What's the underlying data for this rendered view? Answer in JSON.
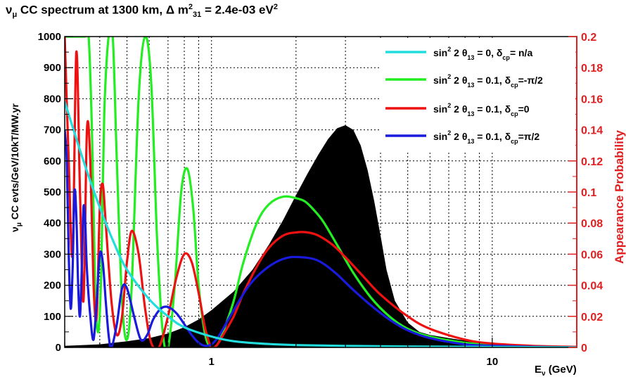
{
  "chart_data": {
    "type": "line",
    "title": {
      "nu": "ν",
      "nu_sub": "μ",
      "main": " CC spectrum at 1300 km,  Δ m",
      "dm_sup": "2",
      "dm_sub": "31",
      "value": " = 2.4e-03 eV",
      "ev_sup": "2"
    },
    "xlabel": {
      "e": "E",
      "e_sub": "ν",
      "unit": " (GeV)"
    },
    "ylabel_left": {
      "nu": "ν",
      "nu_sub": "μ",
      "rest": " CC evts/GeV/10kT/MW.yr"
    },
    "ylabel_right": "Appearance Probability",
    "x_scale": "log",
    "xlim": [
      0.3,
      20
    ],
    "x_ticks": [
      {
        "v": 1,
        "label": "1"
      },
      {
        "v": 10,
        "label": "10"
      }
    ],
    "ylim_left": [
      0,
      1000
    ],
    "y_ticks_left": [
      "0",
      "100",
      "200",
      "300",
      "400",
      "500",
      "600",
      "700",
      "800",
      "900",
      "1000"
    ],
    "ylim_right": [
      0,
      0.2
    ],
    "y_ticks_right": [
      "0",
      "0.02",
      "0.04",
      "0.06",
      "0.08",
      "0.1",
      "0.12",
      "0.14",
      "0.16",
      "0.18",
      "0.2"
    ],
    "grid": true,
    "legend_position": "top-right",
    "colors": {
      "spectrum": "#000000",
      "right_axis": "#e02020"
    },
    "spectrum": {
      "name": "",
      "x": [
        0.3,
        0.4,
        0.5,
        0.6,
        0.7,
        0.8,
        0.9,
        1.0,
        1.2,
        1.4,
        1.6,
        1.8,
        2.0,
        2.2,
        2.4,
        2.6,
        2.8,
        3.0,
        3.2,
        3.4,
        3.6,
        3.8,
        4.0,
        4.2,
        4.5,
        5.0,
        5.5,
        6.0,
        7,
        8,
        10,
        12,
        15,
        20
      ],
      "y": [
        5,
        10,
        20,
        30,
        45,
        65,
        90,
        120,
        180,
        250,
        330,
        410,
        490,
        560,
        620,
        670,
        705,
        715,
        700,
        650,
        570,
        470,
        360,
        250,
        150,
        80,
        50,
        40,
        30,
        22,
        15,
        10,
        6,
        3
      ]
    },
    "series": [
      {
        "label": {
          "a": "sin",
          "a_sup": "2",
          "b": " 2 θ",
          "b_sub": "13",
          "c": " = 0, δ",
          "c_sub": "cp",
          "d": "= n/a"
        },
        "color": "#22dddd",
        "x": [
          0.3,
          0.35,
          0.4,
          0.45,
          0.5,
          0.6,
          0.7,
          0.8,
          1.0,
          1.2,
          1.5,
          2,
          3,
          5,
          10,
          20
        ],
        "y": [
          0.158,
          0.12,
          0.09,
          0.067,
          0.05,
          0.031,
          0.02,
          0.013,
          0.007,
          0.004,
          0.0025,
          0.0015,
          0.001,
          0.0006,
          0.0003,
          0.0001
        ]
      },
      {
        "label": {
          "a": "sin",
          "a_sup": "2",
          "b": " 2 θ",
          "b_sub": "13",
          "c": " = 0.1, δ",
          "c_sub": "cp",
          "d": "=-π/2"
        },
        "color": "#22ee22",
        "x": [
          0.3,
          0.315,
          0.325,
          0.335,
          0.345,
          0.355,
          0.365,
          0.375,
          0.385,
          0.395,
          0.405,
          0.415,
          0.43,
          0.445,
          0.46,
          0.48,
          0.5,
          0.52,
          0.55,
          0.58,
          0.61,
          0.64,
          0.67,
          0.7,
          0.74,
          0.78,
          0.82,
          0.86,
          0.9,
          0.95,
          1.0,
          1.05,
          1.1,
          1.2,
          1.3,
          1.45,
          1.6,
          1.8,
          2.0,
          2.15,
          2.3,
          2.5,
          2.8,
          3.2,
          3.7,
          4.3,
          5,
          6,
          8,
          10,
          14,
          20
        ],
        "y": [
          0.2,
          0.2,
          0.2,
          0.2,
          0.2,
          0.2,
          0.2,
          0.14,
          0.04,
          0.01,
          0.05,
          0.15,
          0.2,
          0.2,
          0.12,
          0.03,
          0.005,
          0.04,
          0.16,
          0.2,
          0.17,
          0.07,
          0.01,
          0.0,
          0.04,
          0.1,
          0.115,
          0.09,
          0.04,
          0.008,
          0.0,
          0.002,
          0.01,
          0.03,
          0.055,
          0.08,
          0.092,
          0.097,
          0.096,
          0.094,
          0.089,
          0.081,
          0.066,
          0.048,
          0.032,
          0.02,
          0.012,
          0.007,
          0.003,
          0.0018,
          0.0008,
          0.0003
        ]
      },
      {
        "label": {
          "a": "sin",
          "a_sup": "2",
          "b": " 2 θ",
          "b_sub": "13",
          "c": " = 0.1, δ",
          "c_sub": "cp",
          "d": "=0"
        },
        "color": "#ee1111",
        "x": [
          0.3,
          0.31,
          0.32,
          0.33,
          0.34,
          0.35,
          0.36,
          0.37,
          0.38,
          0.39,
          0.4,
          0.41,
          0.42,
          0.44,
          0.46,
          0.48,
          0.5,
          0.52,
          0.55,
          0.58,
          0.61,
          0.65,
          0.7,
          0.75,
          0.8,
          0.85,
          0.9,
          0.95,
          1.0,
          1.05,
          1.1,
          1.2,
          1.3,
          1.45,
          1.6,
          1.8,
          2.0,
          2.2,
          2.4,
          2.7,
          3.0,
          3.5,
          4,
          5,
          6,
          8,
          10,
          14,
          20
        ],
        "y": [
          0.2,
          0.12,
          0.06,
          0.19,
          0.1,
          0.03,
          0.14,
          0.12,
          0.04,
          0.02,
          0.09,
          0.105,
          0.08,
          0.03,
          0.008,
          0.02,
          0.055,
          0.075,
          0.06,
          0.025,
          0.003,
          0.0,
          0.02,
          0.045,
          0.06,
          0.055,
          0.035,
          0.012,
          0.0,
          0.002,
          0.008,
          0.02,
          0.035,
          0.052,
          0.064,
          0.072,
          0.074,
          0.074,
          0.072,
          0.066,
          0.058,
          0.045,
          0.034,
          0.02,
          0.012,
          0.005,
          0.0025,
          0.001,
          0.0004
        ]
      },
      {
        "label": {
          "a": "sin",
          "a_sup": "2",
          "b": " 2 θ",
          "b_sub": "13",
          "c": " = 0.1, δ",
          "c_sub": "cp",
          "d": "=π/2"
        },
        "color": "#1a1add",
        "x": [
          0.3,
          0.305,
          0.31,
          0.315,
          0.32,
          0.325,
          0.33,
          0.335,
          0.34,
          0.345,
          0.35,
          0.355,
          0.36,
          0.37,
          0.38,
          0.39,
          0.4,
          0.41,
          0.42,
          0.43,
          0.44,
          0.46,
          0.48,
          0.5,
          0.53,
          0.56,
          0.59,
          0.62,
          0.66,
          0.7,
          0.75,
          0.8,
          0.85,
          0.9,
          0.95,
          1.0,
          1.05,
          1.1,
          1.2,
          1.35,
          1.5,
          1.7,
          1.9,
          2.1,
          2.3,
          2.5,
          2.8,
          3.2,
          3.7,
          4.3,
          5,
          6,
          8,
          10,
          14,
          20
        ],
        "y": [
          0.14,
          0.12,
          0.06,
          0.025,
          0.05,
          0.1,
          0.085,
          0.04,
          0.02,
          0.05,
          0.09,
          0.08,
          0.05,
          0.02,
          0.005,
          0.03,
          0.06,
          0.055,
          0.03,
          0.008,
          0.0,
          0.015,
          0.038,
          0.038,
          0.02,
          0.005,
          0.008,
          0.018,
          0.025,
          0.026,
          0.022,
          0.015,
          0.008,
          0.003,
          0.001,
          0.002,
          0.006,
          0.012,
          0.024,
          0.039,
          0.048,
          0.055,
          0.058,
          0.058,
          0.057,
          0.054,
          0.047,
          0.037,
          0.027,
          0.018,
          0.011,
          0.006,
          0.002,
          0.0011,
          0.0004,
          0.0001
        ]
      }
    ]
  }
}
